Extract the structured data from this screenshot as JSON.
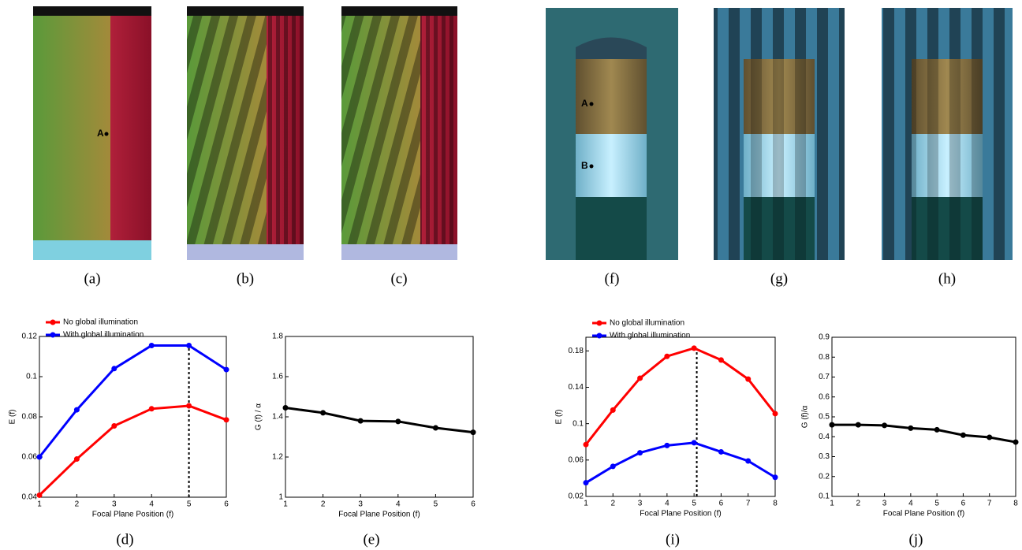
{
  "images": [
    {
      "caption": "(a)",
      "points": [
        "A"
      ]
    },
    {
      "caption": "(b)"
    },
    {
      "caption": "(c)"
    },
    {
      "caption": "(f)",
      "points": [
        "A",
        "B"
      ]
    },
    {
      "caption": "(g)"
    },
    {
      "caption": "(h)"
    }
  ],
  "chart_data": [
    {
      "type": "line",
      "caption": "(d)",
      "xlabel": "Focal Plane Position (f)",
      "ylabel": "E (f)",
      "x": [
        1,
        2,
        3,
        4,
        5,
        6
      ],
      "xlim": [
        1,
        6
      ],
      "xticks": [
        1,
        2,
        3,
        4,
        5,
        6
      ],
      "ylim": [
        0.04,
        0.12
      ],
      "yticks": [
        0.04,
        0.06,
        0.08,
        0.1,
        0.12
      ],
      "vline": 5,
      "legend": "top",
      "series": [
        {
          "name": "No global illumination",
          "color": "#ff0000",
          "values": [
            0.041,
            0.059,
            0.0755,
            0.084,
            0.0855,
            0.0785
          ]
        },
        {
          "name": "With global illumination",
          "color": "#0000ff",
          "values": [
            0.06,
            0.0835,
            0.104,
            0.1155,
            0.1155,
            0.1035
          ]
        }
      ]
    },
    {
      "type": "line",
      "caption": "(e)",
      "xlabel": "Focal Plane Position (f)",
      "ylabel": "G (f) / α",
      "x": [
        1,
        2,
        3,
        4,
        5,
        6
      ],
      "xlim": [
        1,
        6
      ],
      "xticks": [
        1,
        2,
        3,
        4,
        5,
        6
      ],
      "ylim": [
        1,
        1.8
      ],
      "yticks": [
        1,
        1.2,
        1.4,
        1.6,
        1.8
      ],
      "series": [
        {
          "color": "#000000",
          "values": [
            1.445,
            1.42,
            1.38,
            1.377,
            1.345,
            1.323
          ]
        }
      ]
    },
    {
      "type": "line",
      "caption": "(i)",
      "xlabel": "Focal Plane Position (f)",
      "ylabel": "E (f)",
      "x": [
        1,
        2,
        3,
        4,
        5,
        6,
        7,
        8
      ],
      "xlim": [
        1,
        8
      ],
      "xticks": [
        1,
        2,
        3,
        4,
        5,
        6,
        7,
        8
      ],
      "ylim": [
        0.02,
        0.195
      ],
      "yticks": [
        0.02,
        0.06,
        0.1,
        0.14,
        0.18
      ],
      "vline": 5.1,
      "legend": "top",
      "series": [
        {
          "name": "No global illumination",
          "color": "#ff0000",
          "values": [
            0.077,
            0.115,
            0.15,
            0.174,
            0.183,
            0.17,
            0.149,
            0.111
          ]
        },
        {
          "name": "With global illumination",
          "color": "#0000ff",
          "values": [
            0.035,
            0.053,
            0.068,
            0.076,
            0.079,
            0.069,
            0.059,
            0.041
          ]
        }
      ]
    },
    {
      "type": "line",
      "caption": "(j)",
      "xlabel": "Focal Plane Position (f)",
      "ylabel": "G (f)/α",
      "x": [
        1,
        2,
        3,
        4,
        5,
        6,
        7,
        8
      ],
      "xlim": [
        1,
        8
      ],
      "xticks": [
        1,
        2,
        3,
        4,
        5,
        6,
        7,
        8
      ],
      "ylim": [
        0.1,
        0.9
      ],
      "yticks": [
        0.1,
        0.2,
        0.3,
        0.4,
        0.5,
        0.6,
        0.7,
        0.8,
        0.9
      ],
      "series": [
        {
          "color": "#000000",
          "values": [
            0.46,
            0.46,
            0.457,
            0.443,
            0.435,
            0.408,
            0.397,
            0.373
          ]
        }
      ]
    }
  ]
}
